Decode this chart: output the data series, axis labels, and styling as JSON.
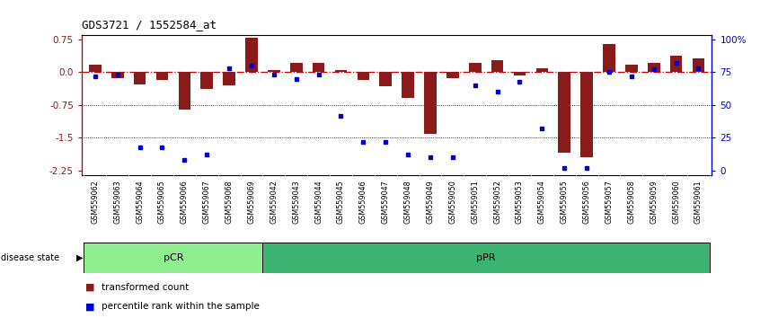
{
  "title": "GDS3721 / 1552584_at",
  "samples": [
    "GSM559062",
    "GSM559063",
    "GSM559064",
    "GSM559065",
    "GSM559066",
    "GSM559067",
    "GSM559068",
    "GSM559069",
    "GSM559042",
    "GSM559043",
    "GSM559044",
    "GSM559045",
    "GSM559046",
    "GSM559047",
    "GSM559048",
    "GSM559049",
    "GSM559050",
    "GSM559051",
    "GSM559052",
    "GSM559053",
    "GSM559054",
    "GSM559055",
    "GSM559056",
    "GSM559057",
    "GSM559058",
    "GSM559059",
    "GSM559060",
    "GSM559061"
  ],
  "red_bars": [
    0.18,
    -0.13,
    -0.28,
    -0.17,
    -0.85,
    -0.38,
    -0.3,
    0.78,
    0.05,
    0.22,
    0.22,
    0.04,
    -0.17,
    -0.33,
    -0.58,
    -1.42,
    -0.13,
    0.22,
    0.27,
    -0.07,
    0.08,
    -1.85,
    -1.95,
    0.65,
    0.17,
    0.22,
    0.38,
    0.32
  ],
  "blue_dots": [
    72,
    73,
    18,
    18,
    8,
    12,
    78,
    80,
    73,
    70,
    73,
    42,
    22,
    22,
    12,
    10,
    10,
    65,
    60,
    68,
    32,
    2,
    2,
    75,
    72,
    77,
    82,
    78
  ],
  "n_pCR": 8,
  "n_pPR": 20,
  "ylim": [
    -2.35,
    0.85
  ],
  "yticks_red": [
    0.75,
    0.0,
    -0.75,
    -1.5,
    -2.25
  ],
  "yticks_blue": [
    100,
    75,
    50,
    25,
    0
  ],
  "hlines": [
    -0.75,
    -1.5
  ],
  "bar_color": "#8B1A1A",
  "dot_color": "#0000CD",
  "zero_line_color": "#CC0000",
  "pCR_color": "#90EE90",
  "pPR_color": "#3CB371",
  "tick_bg_color": "#C8C8C8",
  "figsize": [
    8.66,
    3.54
  ],
  "dpi": 100
}
